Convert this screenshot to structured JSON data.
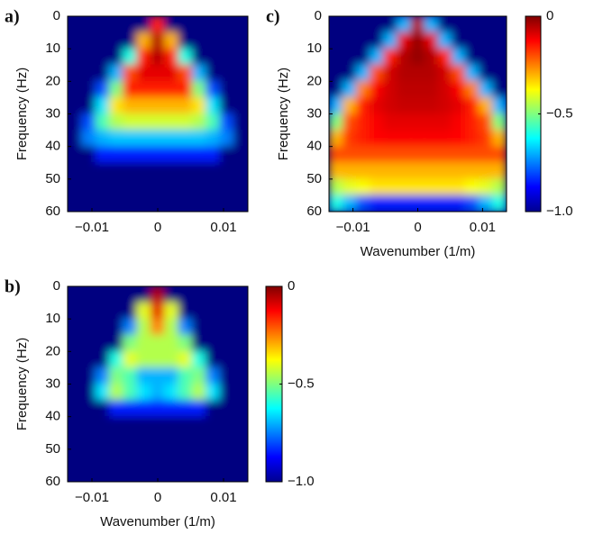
{
  "chart_data": [
    {
      "type": "heatmap",
      "title": "a)",
      "ylabel": "Frequency (Hz)",
      "colormap": "jet",
      "x": [
        -0.0126,
        -0.0105,
        -0.0084,
        -0.0063,
        -0.0042,
        -0.0021,
        0,
        0.0021,
        0.0042,
        0.0063,
        0.0084,
        0.0105,
        0.0126
      ],
      "y": [
        2.5,
        7.5,
        12.5,
        17.5,
        22.5,
        27.5,
        32.5,
        37.5,
        42.5,
        47.5,
        52.5,
        57.5
      ],
      "values": [
        [
          -1,
          -1,
          -1,
          -1,
          -1,
          -1,
          -0.15,
          -1,
          -1,
          -1,
          -1,
          -1,
          -1
        ],
        [
          -1,
          -1,
          -1,
          -1,
          -1,
          -0.3,
          -0.05,
          -0.3,
          -1,
          -1,
          -1,
          -1,
          -1
        ],
        [
          -1,
          -1,
          -1,
          -1,
          -0.6,
          -0.15,
          -0.05,
          -0.15,
          -0.6,
          -1,
          -1,
          -1,
          -1
        ],
        [
          -1,
          -1,
          -1,
          -0.7,
          -0.2,
          -0.1,
          -0.1,
          -0.1,
          -0.2,
          -0.7,
          -1,
          -1,
          -1
        ],
        [
          -1,
          -1,
          -0.8,
          -0.5,
          -0.15,
          -0.15,
          -0.15,
          -0.15,
          -0.15,
          -0.5,
          -0.8,
          -1,
          -1
        ],
        [
          -1,
          -1,
          -0.65,
          -0.35,
          -0.3,
          -0.3,
          -0.3,
          -0.3,
          -0.3,
          -0.35,
          -0.65,
          -1,
          -1
        ],
        [
          -1,
          -0.8,
          -0.55,
          -0.45,
          -0.42,
          -0.42,
          -0.42,
          -0.42,
          -0.42,
          -0.45,
          -0.55,
          -0.8,
          -1
        ],
        [
          -1,
          -0.75,
          -0.7,
          -0.68,
          -0.68,
          -0.68,
          -0.68,
          -0.68,
          -0.68,
          -0.68,
          -0.7,
          -0.75,
          -1
        ],
        [
          -1,
          -1,
          -0.85,
          -0.85,
          -0.85,
          -0.85,
          -0.85,
          -0.85,
          -0.85,
          -0.85,
          -0.85,
          -1,
          -1
        ],
        [
          -1,
          -1,
          -1,
          -1,
          -1,
          -1,
          -1,
          -1,
          -1,
          -1,
          -1,
          -1,
          -1
        ],
        [
          -1,
          -1,
          -1,
          -1,
          -1,
          -1,
          -1,
          -1,
          -1,
          -1,
          -1,
          -1,
          -1
        ],
        [
          -1,
          -1,
          -1,
          -1,
          -1,
          -1,
          -1,
          -1,
          -1,
          -1,
          -1,
          -1,
          -1
        ]
      ],
      "xlim": [
        -0.0137,
        0.0137
      ],
      "ylim": [
        60,
        0
      ],
      "xticks": [
        {
          "value": -0.01,
          "label": "−0.01"
        },
        0,
        0.01
      ],
      "yticks": [
        0,
        10,
        20,
        30,
        40,
        50,
        60
      ]
    },
    {
      "type": "heatmap",
      "title": "b)",
      "xlabel": "Wavenumber (1/m)",
      "ylabel": "Frequency (Hz)",
      "colormap": "jet",
      "x": [
        -0.0126,
        -0.0105,
        -0.0084,
        -0.0063,
        -0.0042,
        -0.0021,
        0,
        0.0021,
        0.0042,
        0.0063,
        0.0084,
        0.0105,
        0.0126
      ],
      "y": [
        2.5,
        7.5,
        12.5,
        17.5,
        22.5,
        27.5,
        32.5,
        37.5,
        42.5,
        47.5,
        52.5,
        57.5
      ],
      "values": [
        [
          -1,
          -1,
          -1,
          -1,
          -1,
          -1,
          -0.05,
          -1,
          -1,
          -1,
          -1,
          -1,
          -1
        ],
        [
          -1,
          -1,
          -1,
          -1,
          -1,
          -0.4,
          -0.1,
          -0.4,
          -1,
          -1,
          -1,
          -1,
          -1
        ],
        [
          -1,
          -1,
          -1,
          -1,
          -0.75,
          -0.45,
          -0.25,
          -0.45,
          -0.75,
          -1,
          -1,
          -1,
          -1
        ],
        [
          -1,
          -1,
          -1,
          -1,
          -0.5,
          -0.45,
          -0.45,
          -0.45,
          -0.5,
          -1,
          -1,
          -1,
          -1
        ],
        [
          -1,
          -1,
          -1,
          -0.6,
          -0.4,
          -0.45,
          -0.45,
          -0.45,
          -0.4,
          -0.6,
          -1,
          -1,
          -1
        ],
        [
          -1,
          -1,
          -0.75,
          -0.5,
          -0.55,
          -0.7,
          -0.7,
          -0.7,
          -0.55,
          -0.5,
          -0.75,
          -1,
          -1
        ],
        [
          -1,
          -1,
          -0.65,
          -0.45,
          -0.55,
          -0.65,
          -0.7,
          -0.65,
          -0.55,
          -0.45,
          -0.65,
          -1,
          -1
        ],
        [
          -1,
          -1,
          -1,
          -0.85,
          -0.85,
          -0.85,
          -0.85,
          -0.85,
          -0.85,
          -0.85,
          -1,
          -1,
          -1
        ],
        [
          -1,
          -1,
          -1,
          -1,
          -1,
          -1,
          -1,
          -1,
          -1,
          -1,
          -1,
          -1,
          -1
        ],
        [
          -1,
          -1,
          -1,
          -1,
          -1,
          -1,
          -1,
          -1,
          -1,
          -1,
          -1,
          -1,
          -1
        ],
        [
          -1,
          -1,
          -1,
          -1,
          -1,
          -1,
          -1,
          -1,
          -1,
          -1,
          -1,
          -1,
          -1
        ],
        [
          -1,
          -1,
          -1,
          -1,
          -1,
          -1,
          -1,
          -1,
          -1,
          -1,
          -1,
          -1,
          -1
        ]
      ],
      "xlim": [
        -0.0137,
        0.0137
      ],
      "ylim": [
        60,
        0
      ],
      "xticks": [
        {
          "value": -0.01,
          "label": "−0.01"
        },
        0,
        0.01
      ],
      "yticks": [
        0,
        10,
        20,
        30,
        40,
        50,
        60
      ],
      "colorbar": {
        "lim": [
          -1,
          0
        ],
        "ticks": [
          0,
          {
            "value": -0.5,
            "label": "−0.5"
          },
          {
            "value": -1,
            "label": "−1.0"
          }
        ]
      }
    },
    {
      "type": "heatmap",
      "title": "c)",
      "xlabel": "Wavenumber (1/m)",
      "ylabel": "Frequency (Hz)",
      "colormap": "jet",
      "x": [
        -0.0126,
        -0.0105,
        -0.0084,
        -0.0063,
        -0.0042,
        -0.0021,
        0,
        0.0021,
        0.0042,
        0.0063,
        0.0084,
        0.0105,
        0.0126
      ],
      "y": [
        2.5,
        7.5,
        12.5,
        17.5,
        22.5,
        27.5,
        32.5,
        37.5,
        42.5,
        47.5,
        52.5,
        57.5
      ],
      "values": [
        [
          -1,
          -1,
          -1,
          -1,
          -1,
          -0.7,
          -0.05,
          -0.7,
          -1,
          -1,
          -1,
          -1,
          -1
        ],
        [
          -1,
          -1,
          -1,
          -1,
          -0.7,
          -0.1,
          -0.02,
          -0.1,
          -0.7,
          -1,
          -1,
          -1,
          -1
        ],
        [
          -1,
          -1,
          -1,
          -0.7,
          -0.15,
          -0.05,
          -0.02,
          -0.05,
          -0.15,
          -0.7,
          -1,
          -1,
          -1
        ],
        [
          -1,
          -1,
          -0.7,
          -0.2,
          -0.08,
          -0.05,
          -0.05,
          -0.05,
          -0.08,
          -0.2,
          -0.7,
          -1,
          -1
        ],
        [
          -1,
          -0.7,
          -0.25,
          -0.12,
          -0.08,
          -0.06,
          -0.06,
          -0.06,
          -0.08,
          -0.12,
          -0.25,
          -0.7,
          -1
        ],
        [
          -0.7,
          -0.3,
          -0.15,
          -0.1,
          -0.08,
          -0.07,
          -0.07,
          -0.07,
          -0.08,
          -0.1,
          -0.15,
          -0.3,
          -0.7
        ],
        [
          -0.5,
          -0.2,
          -0.15,
          -0.12,
          -0.1,
          -0.1,
          -0.1,
          -0.1,
          -0.1,
          -0.12,
          -0.15,
          -0.2,
          -0.5
        ],
        [
          -0.3,
          -0.18,
          -0.15,
          -0.13,
          -0.12,
          -0.12,
          -0.12,
          -0.12,
          -0.12,
          -0.13,
          -0.15,
          -0.18,
          -0.3
        ],
        [
          -0.2,
          -0.2,
          -0.2,
          -0.2,
          -0.2,
          -0.2,
          -0.2,
          -0.2,
          -0.2,
          -0.2,
          -0.2,
          -0.2,
          -0.2
        ],
        [
          -0.3,
          -0.3,
          -0.3,
          -0.3,
          -0.3,
          -0.3,
          -0.3,
          -0.3,
          -0.3,
          -0.3,
          -0.3,
          -0.3,
          -0.3
        ],
        [
          -0.45,
          -0.4,
          -0.38,
          -0.35,
          -0.35,
          -0.35,
          -0.35,
          -0.35,
          -0.35,
          -0.35,
          -0.38,
          -0.4,
          -0.45
        ],
        [
          -0.6,
          -0.7,
          -0.8,
          -0.85,
          -0.85,
          -0.85,
          -0.85,
          -0.85,
          -0.85,
          -0.85,
          -0.8,
          -0.7,
          -0.6
        ]
      ],
      "xlim": [
        -0.0137,
        0.0137
      ],
      "ylim": [
        60,
        0
      ],
      "xticks": [
        {
          "value": -0.01,
          "label": "−0.01"
        },
        0,
        0.01
      ],
      "yticks": [
        0,
        10,
        20,
        30,
        40,
        50,
        60
      ],
      "colorbar": {
        "lim": [
          -1,
          0
        ],
        "ticks": [
          0,
          {
            "value": -0.5,
            "label": "−0.5"
          },
          {
            "value": -1,
            "label": "−1.0"
          }
        ]
      }
    }
  ]
}
